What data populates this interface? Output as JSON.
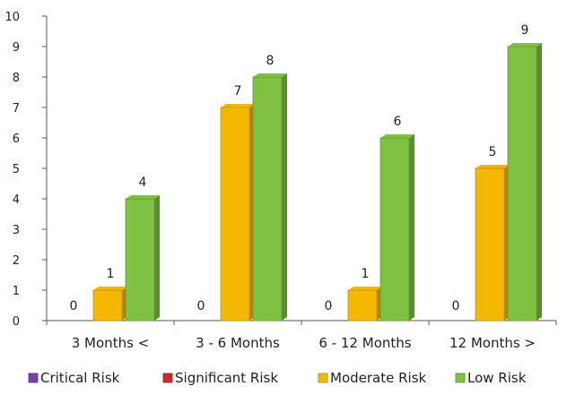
{
  "chart_data": {
    "type": "bar",
    "title": "",
    "xlabel": "",
    "ylabel": "",
    "ylim": [
      0,
      10
    ],
    "yticks": [
      0,
      1,
      2,
      3,
      4,
      5,
      6,
      7,
      8,
      9,
      10
    ],
    "categories": [
      "3 Months <",
      "3 - 6 Months",
      "6 - 12 Months",
      "12 Months >"
    ],
    "series": [
      {
        "name": "Critical Risk",
        "color": "#7b3fa8",
        "values": [
          0,
          0,
          0,
          0
        ]
      },
      {
        "name": "Significant Risk",
        "color": "#d0282e",
        "values": [
          0,
          0,
          0,
          0
        ]
      },
      {
        "name": "Moderate Risk",
        "color": "#f5b800",
        "values": [
          1,
          7,
          1,
          5
        ]
      },
      {
        "name": "Low Risk",
        "color": "#7fc243",
        "values": [
          4,
          8,
          6,
          9
        ]
      }
    ],
    "data_labels": [
      {
        "category": "3 Months <",
        "label": "0",
        "series": "Significant Risk"
      },
      {
        "category": "3 - 6 Months",
        "label": "0",
        "series": "Significant Risk"
      },
      {
        "category": "6 - 12 Months",
        "label": "0",
        "series": "Significant Risk"
      },
      {
        "category": "12 Months >",
        "label": "0",
        "series": "Significant Risk"
      }
    ],
    "grid": false,
    "legend_position": "bottom"
  }
}
